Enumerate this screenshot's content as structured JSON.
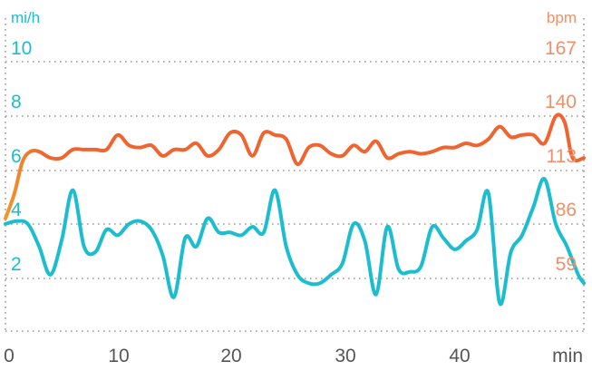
{
  "colors": {
    "speed": "#1dbdd0",
    "heart_rate": "#f0642f",
    "heart_rate_start": "#f39a28",
    "hr_axis": "#f0906a",
    "grid": "#9a9a9a",
    "x_axis_text": "#555555"
  },
  "chart_data": {
    "type": "line",
    "left_axis": {
      "unit": "mi/h",
      "ticks": [
        2,
        4,
        6,
        8,
        10
      ],
      "range": [
        0,
        11.1
      ]
    },
    "right_axis": {
      "unit": "bpm",
      "ticks": [
        59,
        86,
        113,
        140,
        167
      ],
      "range": [
        32,
        182
      ]
    },
    "x_axis": {
      "unit": "min",
      "ticks": [
        0,
        10,
        20,
        30,
        40
      ],
      "range": [
        0,
        51.5
      ]
    },
    "grid": "dotted horizontal",
    "series": [
      {
        "axis": "left",
        "x": [
          0,
          1,
          2,
          3,
          4,
          5,
          6,
          7,
          8,
          9,
          10,
          11,
          12,
          13,
          14,
          15,
          16,
          17,
          18,
          19,
          20,
          21,
          22,
          23,
          24,
          25,
          26,
          27,
          28,
          29,
          30,
          31,
          32,
          33,
          34,
          35,
          36,
          37,
          38,
          39,
          40,
          41,
          42,
          43,
          44,
          45,
          46,
          47,
          48,
          49,
          50,
          51,
          51.5
        ],
        "values": [
          3.8,
          3.9,
          3.8,
          3.0,
          2.0,
          3.2,
          5.0,
          3.0,
          2.8,
          3.6,
          3.4,
          3.8,
          3.9,
          3.6,
          2.7,
          1.2,
          3.3,
          3.0,
          4.0,
          3.5,
          3.5,
          3.4,
          3.7,
          3.5,
          5.0,
          3.0,
          2.0,
          1.7,
          1.7,
          2.0,
          2.4,
          3.8,
          3.2,
          1.3,
          3.7,
          2.2,
          2.1,
          2.3,
          3.7,
          3.3,
          2.9,
          3.2,
          3.6,
          4.9,
          1.0,
          2.8,
          3.4,
          4.4,
          5.4,
          3.8,
          3.0,
          2.0,
          1.7
        ]
      },
      {
        "axis": "right",
        "x": [
          0,
          0.8,
          1.5,
          2.2,
          3,
          4,
          5,
          6,
          7,
          8,
          9,
          10,
          11,
          12,
          13,
          14,
          15,
          16,
          17,
          18,
          19,
          20,
          21,
          22,
          23,
          24,
          25,
          26,
          27,
          28,
          29,
          30,
          31,
          32,
          33,
          34,
          35,
          36,
          37,
          38,
          39,
          40,
          41,
          42,
          43,
          44,
          45,
          46,
          47,
          48,
          49,
          49.8,
          50.5,
          51.5
        ],
        "values": [
          86,
          98,
          113,
          118,
          118,
          115,
          115,
          119,
          119,
          119,
          119,
          126,
          121,
          120,
          121,
          116,
          119,
          119,
          122,
          116,
          119,
          127,
          126,
          116,
          127,
          126,
          124,
          112,
          120,
          121,
          117,
          116,
          121,
          118,
          123,
          115,
          117,
          118,
          117,
          118,
          120,
          120,
          122,
          121,
          124,
          130,
          125,
          126,
          126,
          122,
          135,
          132,
          115,
          115
        ]
      }
    ]
  }
}
